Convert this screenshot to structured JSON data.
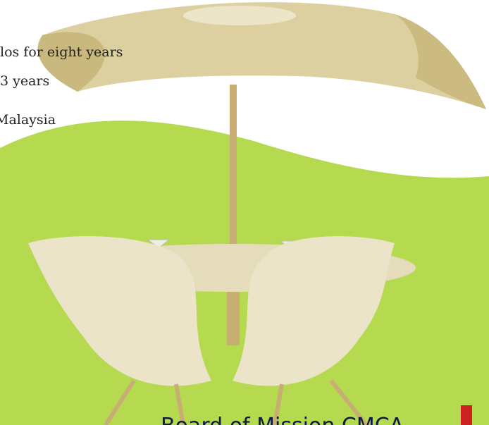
{
  "body": {
    "lines": [
      "los for eight years",
      "3 years",
      "Malaysia"
    ]
  },
  "footer": {
    "title": "Board of Mission CMCA"
  }
}
